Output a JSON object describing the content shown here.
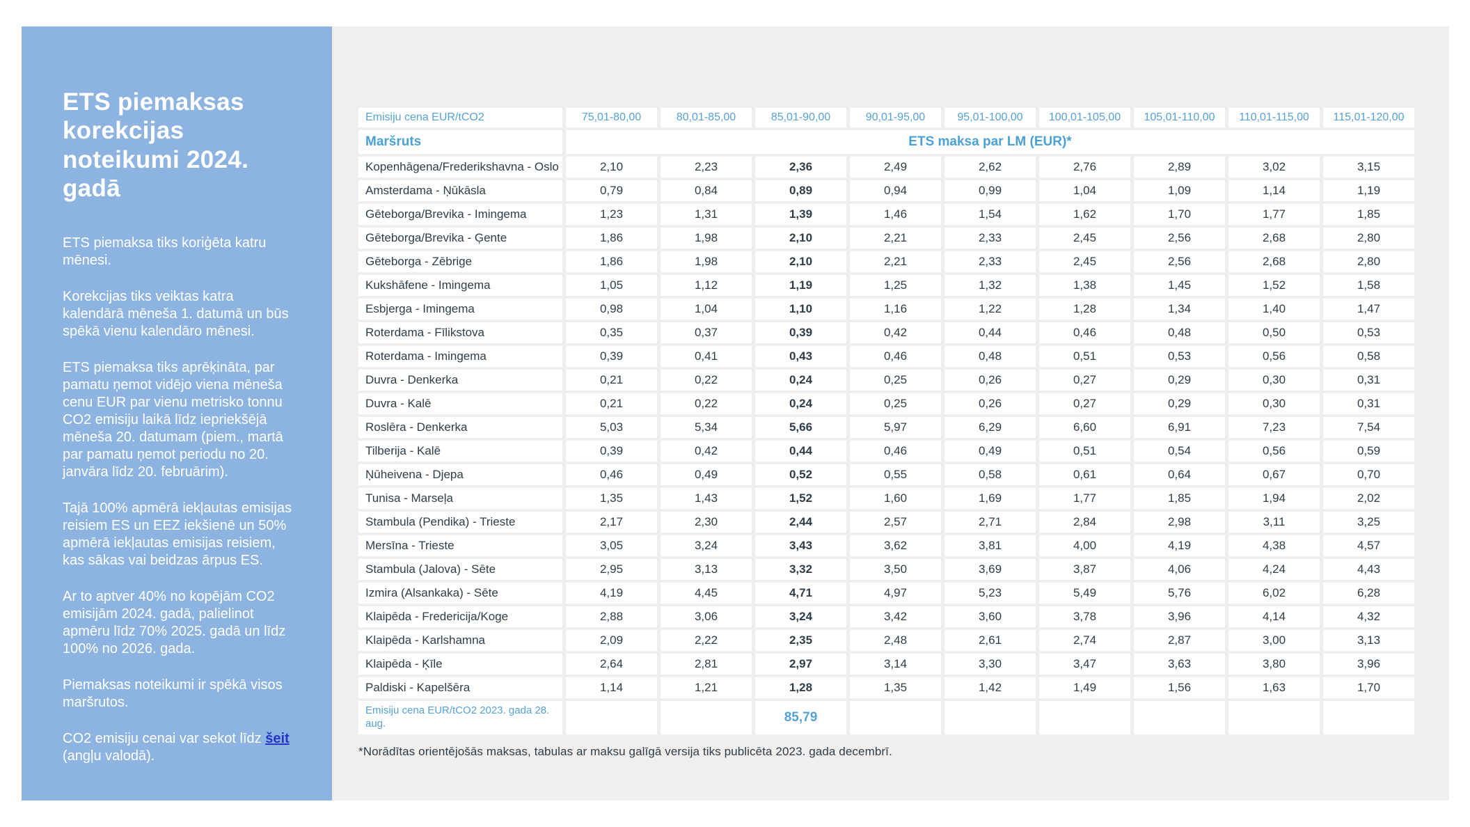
{
  "colors": {
    "sidebar_blue": "#8db3e1",
    "accent_blue": "#55a2d4",
    "text_dark": "#2e3d49",
    "link_blue": "#2336c6",
    "panel_gray": "#f0efee"
  },
  "sidebar": {
    "title": "ETS piemaksas korekcijas noteikumi  2024. gadā",
    "paragraphs": [
      "ETS piemaksa tiks koriģēta katru mēnesi.",
      "Korekcijas tiks veiktas katra kalendārā mēneša 1. datumā un būs spēkā vienu kalendāro mēnesi.",
      "ETS piemaksa tiks aprēķināta, par pamatu ņemot vidējo viena mēneša cenu EUR par vienu metrisko  tonnu CO2 emisiju laikā līdz iepriekšējā mēneša 20. datumam (piem., martā par pamatu ņemot periodu no 20. janvāra līdz 20. februārim).",
      "Tajā 100% apmērā iekļautas emisijas reisiem ES un EEZ iekšienē un 50% apmērā iekļautas emisijas reisiem, kas sākas vai beidzas ārpus ES.",
      "Ar to aptver 40% no kopējām CO2 emisijām 2024. gadā, palielinot apmēru līdz 70% 2025. gadā un līdz 100% no 2026. gada.",
      "Piemaksas noteikumi ir spēkā visos maršrutos."
    ],
    "link_paragraph": {
      "prefix": "CO2 emisiju cenai var sekot līdz ",
      "link": "šeit",
      "suffix": " (angļu valodā)."
    }
  },
  "table": {
    "price_header_label": "Emisiju cena EUR/tCO2",
    "price_ranges": [
      "75,01-80,00",
      "80,01-85,00",
      "85,01-90,00",
      "90,01-95,00",
      "95,01-100,00",
      "100,01-105,00",
      "105,01-110,00",
      "110,01-115,00",
      "115,01-120,00"
    ],
    "route_header_label": "Maršruts",
    "span_header_label": "ETS maksa par LM (EUR)*",
    "bold_column_index": 2,
    "rows": [
      {
        "route": "Kopenhāgena/Frederikshavna - Oslo",
        "values": [
          "2,10",
          "2,23",
          "2,36",
          "2,49",
          "2,62",
          "2,76",
          "2,89",
          "3,02",
          "3,15"
        ]
      },
      {
        "route": "Amsterdama - Ņūkāsla",
        "values": [
          "0,79",
          "0,84",
          "0,89",
          "0,94",
          "0,99",
          "1,04",
          "1,09",
          "1,14",
          "1,19"
        ]
      },
      {
        "route": "Gēteborga/Brevika - Imingema",
        "values": [
          "1,23",
          "1,31",
          "1,39",
          "1,46",
          "1,54",
          "1,62",
          "1,70",
          "1,77",
          "1,85"
        ]
      },
      {
        "route": "Gēteborga/Brevika - Ģente",
        "values": [
          "1,86",
          "1,98",
          "2,10",
          "2,21",
          "2,33",
          "2,45",
          "2,56",
          "2,68",
          "2,80"
        ]
      },
      {
        "route": "Gēteborga - Zēbrige",
        "values": [
          "1,86",
          "1,98",
          "2,10",
          "2,21",
          "2,33",
          "2,45",
          "2,56",
          "2,68",
          "2,80"
        ]
      },
      {
        "route": "Kukshāfene - Imingema",
        "values": [
          "1,05",
          "1,12",
          "1,19",
          "1,25",
          "1,32",
          "1,38",
          "1,45",
          "1,52",
          "1,58"
        ]
      },
      {
        "route": "Esbjerga - Imingema",
        "values": [
          "0,98",
          "1,04",
          "1,10",
          "1,16",
          "1,22",
          "1,28",
          "1,34",
          "1,40",
          "1,47"
        ]
      },
      {
        "route": "Roterdama - Fīlikstova",
        "values": [
          "0,35",
          "0,37",
          "0,39",
          "0,42",
          "0,44",
          "0,46",
          "0,48",
          "0,50",
          "0,53"
        ]
      },
      {
        "route": "Roterdama - Imingema",
        "values": [
          "0,39",
          "0,41",
          "0,43",
          "0,46",
          "0,48",
          "0,51",
          "0,53",
          "0,56",
          "0,58"
        ]
      },
      {
        "route": "Duvra - Denkerka",
        "values": [
          "0,21",
          "0,22",
          "0,24",
          "0,25",
          "0,26",
          "0,27",
          "0,29",
          "0,30",
          "0,31"
        ]
      },
      {
        "route": "Duvra - Kalē",
        "values": [
          "0,21",
          "0,22",
          "0,24",
          "0,25",
          "0,26",
          "0,27",
          "0,29",
          "0,30",
          "0,31"
        ]
      },
      {
        "route": "Roslēra - Denkerka",
        "values": [
          "5,03",
          "5,34",
          "5,66",
          "5,97",
          "6,29",
          "6,60",
          "6,91",
          "7,23",
          "7,54"
        ]
      },
      {
        "route": "Tilberija - Kalē",
        "values": [
          "0,39",
          "0,42",
          "0,44",
          "0,46",
          "0,49",
          "0,51",
          "0,54",
          "0,56",
          "0,59"
        ]
      },
      {
        "route": "Ņūheivena - Djepa",
        "values": [
          "0,46",
          "0,49",
          "0,52",
          "0,55",
          "0,58",
          "0,61",
          "0,64",
          "0,67",
          "0,70"
        ]
      },
      {
        "route": "Tunisa - Marseļa",
        "values": [
          "1,35",
          "1,43",
          "1,52",
          "1,60",
          "1,69",
          "1,77",
          "1,85",
          "1,94",
          "2,02"
        ]
      },
      {
        "route": "Stambula (Pendika) - Trieste",
        "values": [
          "2,17",
          "2,30",
          "2,44",
          "2,57",
          "2,71",
          "2,84",
          "2,98",
          "3,11",
          "3,25"
        ]
      },
      {
        "route": "Mersīna - Trieste",
        "values": [
          "3,05",
          "3,24",
          "3,43",
          "3,62",
          "3,81",
          "4,00",
          "4,19",
          "4,38",
          "4,57"
        ]
      },
      {
        "route": "Stambula (Jalova) - Sēte",
        "values": [
          "2,95",
          "3,13",
          "3,32",
          "3,50",
          "3,69",
          "3,87",
          "4,06",
          "4,24",
          "4,43"
        ]
      },
      {
        "route": "Izmira (Alsankaka) - Sēte",
        "values": [
          "4,19",
          "4,45",
          "4,71",
          "4,97",
          "5,23",
          "5,49",
          "5,76",
          "6,02",
          "6,28"
        ]
      },
      {
        "route": "Klaipēda - Fredericija/Koge",
        "values": [
          "2,88",
          "3,06",
          "3,24",
          "3,42",
          "3,60",
          "3,78",
          "3,96",
          "4,14",
          "4,32"
        ]
      },
      {
        "route": "Klaipēda - Karlshamna",
        "values": [
          "2,09",
          "2,22",
          "2,35",
          "2,48",
          "2,61",
          "2,74",
          "2,87",
          "3,00",
          "3,13"
        ]
      },
      {
        "route": "Klaipēda - Ķīle",
        "values": [
          "2,64",
          "2,81",
          "2,97",
          "3,14",
          "3,30",
          "3,47",
          "3,63",
          "3,80",
          "3,96"
        ]
      },
      {
        "route": "Paldiski - Kapelšēra",
        "values": [
          "1,14",
          "1,21",
          "1,28",
          "1,35",
          "1,42",
          "1,49",
          "1,56",
          "1,63",
          "1,70"
        ]
      }
    ],
    "footer_label": "Emisiju cena EUR/tCO2 2023. gada 28. aug.",
    "footer_value": "85,79",
    "footer_value_column_index": 2,
    "footnote": "*Norādītas orientējošās maksas, tabulas ar maksu galīgā versija tiks publicēta 2023. gada decembrī."
  }
}
